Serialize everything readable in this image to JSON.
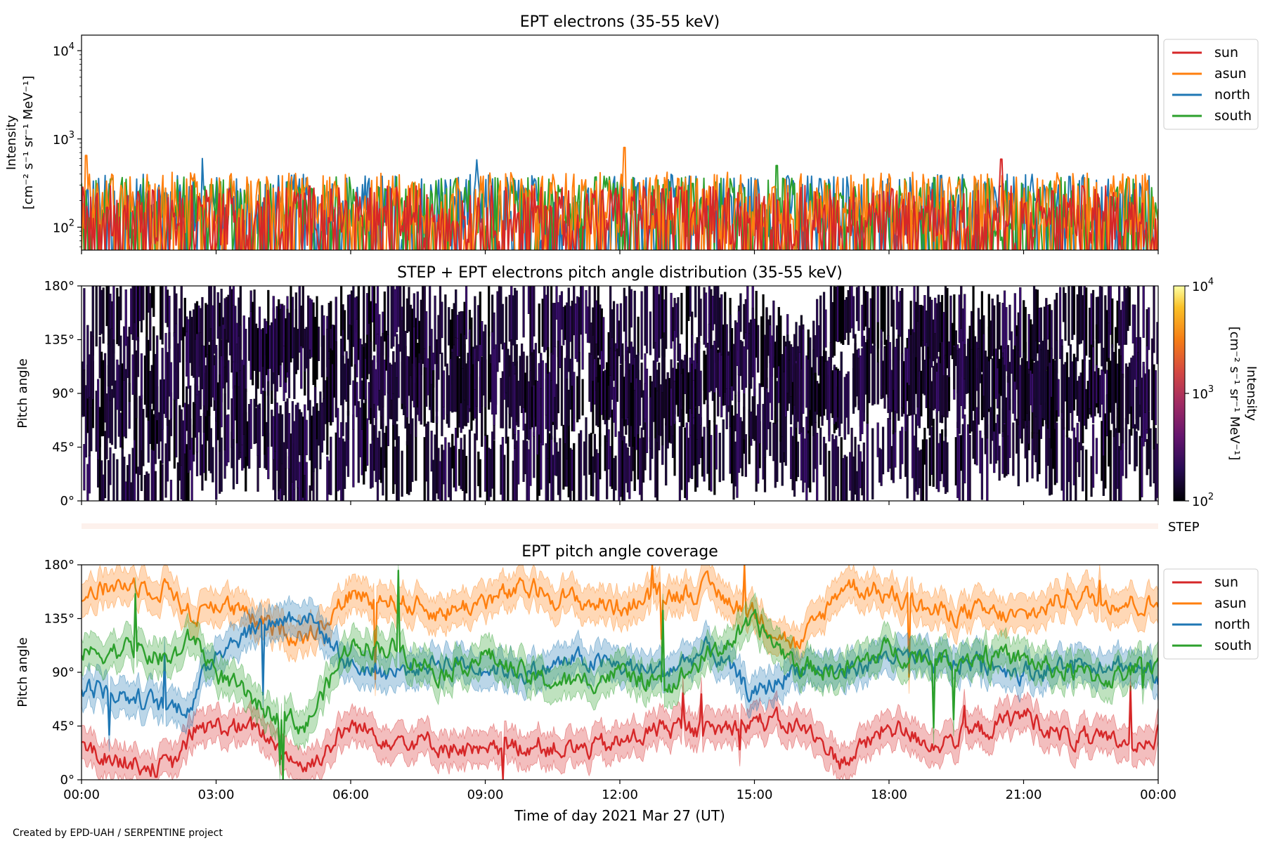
{
  "credit": "Created by EPD-UAH / SERPENTINE project",
  "colors": {
    "sun": "#d62728",
    "asun": "#ff7f0e",
    "north": "#1f77b4",
    "south": "#2ca02c",
    "step_strip": "#fdf1ec"
  },
  "chart_data": [
    {
      "type": "line",
      "title": "EPT electrons (35-55 keV)",
      "ylabel_line1": "Intensity",
      "ylabel_line2": "[cm⁻² s⁻¹ sr⁻¹ MeV⁻¹]",
      "yscale": "log",
      "ylim": [
        55,
        15000
      ],
      "yticks": [
        {
          "value": 100,
          "base": "10",
          "exp": "2"
        },
        {
          "value": 1000,
          "base": "10",
          "exp": "3"
        },
        {
          "value": 10000,
          "base": "10",
          "exp": "4"
        }
      ],
      "xlim_hours": [
        0,
        24
      ],
      "legend_position": "upper-right outside",
      "series": [
        {
          "name": "sun",
          "color": "#d62728",
          "typical_range": [
            60,
            300
          ],
          "peaks": [
            {
              "hour": 20.5,
              "value": 590
            }
          ]
        },
        {
          "name": "asun",
          "color": "#ff7f0e",
          "typical_range": [
            80,
            420
          ],
          "peaks": [
            {
              "hour": 12.1,
              "value": 800
            },
            {
              "hour": 0.1,
              "value": 650
            }
          ]
        },
        {
          "name": "north",
          "color": "#1f77b4",
          "typical_range": [
            70,
            400
          ],
          "peaks": [
            {
              "hour": 2.7,
              "value": 600
            },
            {
              "hour": 8.8,
              "value": 580
            }
          ]
        },
        {
          "name": "south",
          "color": "#2ca02c",
          "typical_range": [
            70,
            380
          ],
          "peaks": [
            {
              "hour": 15.5,
              "value": 500
            }
          ]
        }
      ],
      "legend": [
        "sun",
        "asun",
        "north",
        "south"
      ]
    },
    {
      "type": "heatmap",
      "title": "STEP + EPT electrons pitch angle distribution (35-55 keV)",
      "ylabel": "Pitch angle",
      "ylim": [
        0,
        180
      ],
      "yticks": [
        "0°",
        "45°",
        "90°",
        "135°",
        "180°"
      ],
      "colorbar": {
        "label_line1": "Intensity",
        "label_line2": "[cm⁻² s⁻¹ sr⁻¹ MeV⁻¹]",
        "scale": "log",
        "range": [
          100,
          10000
        ],
        "ticks": [
          {
            "base": "10",
            "exp": "2"
          },
          {
            "base": "10",
            "exp": "3"
          },
          {
            "base": "10",
            "exp": "4"
          }
        ],
        "colormap": "inferno"
      },
      "intensity_range": [
        100,
        300
      ],
      "xlim_hours": [
        0,
        24
      ]
    },
    {
      "type": "bar",
      "label": "STEP",
      "note": "STEP coverage strip (empty)"
    },
    {
      "type": "line",
      "title": "EPT pitch angle coverage",
      "ylabel": "Pitch angle",
      "ylim": [
        0,
        180
      ],
      "yticks": [
        "0°",
        "45°",
        "90°",
        "135°",
        "180°"
      ],
      "xlabel": "Time of day 2021 Mar 27 (UT)",
      "xticks": [
        "00:00",
        "03:00",
        "06:00",
        "09:00",
        "12:00",
        "15:00",
        "18:00",
        "21:00",
        "00:00"
      ],
      "xlim_hours": [
        0,
        24
      ],
      "legend_position": "upper-right outside",
      "legend": [
        "sun",
        "asun",
        "north",
        "south"
      ],
      "series": [
        {
          "name": "sun",
          "color": "#d62728",
          "x": [
            0,
            1,
            2,
            2.5,
            3,
            4,
            5,
            6,
            7,
            8,
            9,
            10,
            11,
            12,
            13,
            14,
            15,
            16,
            17,
            18,
            19,
            20,
            21,
            22,
            23,
            24
          ],
          "y": [
            25,
            15,
            10,
            40,
            45,
            40,
            10,
            45,
            35,
            30,
            20,
            30,
            25,
            30,
            45,
            40,
            50,
            45,
            15,
            45,
            30,
            40,
            55,
            35,
            30,
            40
          ]
        },
        {
          "name": "asun",
          "color": "#ff7f0e",
          "x": [
            0,
            1,
            2,
            2.5,
            3,
            4,
            5,
            6,
            7,
            8,
            9,
            10,
            11,
            12,
            13,
            14,
            15,
            16,
            17,
            18,
            19,
            20,
            21,
            22,
            23,
            24
          ],
          "y": [
            155,
            165,
            160,
            135,
            150,
            130,
            120,
            155,
            150,
            140,
            150,
            160,
            150,
            145,
            155,
            160,
            140,
            110,
            165,
            155,
            140,
            140,
            135,
            155,
            150,
            145
          ]
        },
        {
          "name": "north",
          "color": "#1f77b4",
          "x": [
            0,
            1,
            2,
            2.5,
            3,
            4,
            5,
            6,
            7,
            8,
            9,
            10,
            11,
            12,
            13,
            14,
            15,
            16,
            17,
            18,
            19,
            20,
            21,
            22,
            23,
            24
          ],
          "y": [
            80,
            70,
            60,
            65,
            110,
            130,
            140,
            95,
            90,
            100,
            95,
            90,
            100,
            95,
            90,
            110,
            70,
            95,
            90,
            105,
            95,
            100,
            90,
            95,
            100,
            85
          ]
        },
        {
          "name": "south",
          "color": "#2ca02c",
          "x": [
            0,
            1,
            2,
            2.5,
            3,
            4,
            5,
            6,
            7,
            8,
            9,
            10,
            11,
            12,
            13,
            14,
            15,
            16,
            17,
            18,
            19,
            20,
            21,
            22,
            23,
            24
          ],
          "y": [
            105,
            110,
            100,
            120,
            90,
            60,
            45,
            115,
            110,
            90,
            105,
            85,
            80,
            90,
            75,
            105,
            130,
            95,
            90,
            110,
            100,
            105,
            100,
            90,
            85,
            100
          ]
        }
      ]
    }
  ]
}
